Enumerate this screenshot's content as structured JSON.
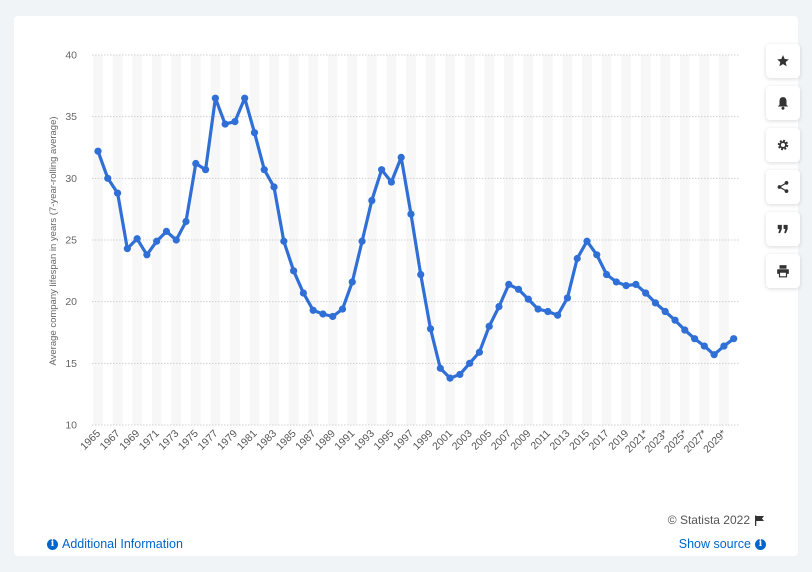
{
  "chart_data": {
    "type": "line",
    "ylabel": "Average company lifespan in years (7-year-rolling average)",
    "ylim": [
      10,
      40
    ],
    "yticks": [
      10,
      15,
      20,
      25,
      30,
      35,
      40
    ],
    "grid": true,
    "alternating_column_bands": true,
    "x": [
      "1965",
      "1966",
      "1967",
      "1968",
      "1969",
      "1970",
      "1971",
      "1972",
      "1973",
      "1974",
      "1975",
      "1976",
      "1977",
      "1978",
      "1979",
      "1980",
      "1981",
      "1982",
      "1983",
      "1984",
      "1985",
      "1986",
      "1987",
      "1988",
      "1989",
      "1990",
      "1991",
      "1992",
      "1993",
      "1994",
      "1995",
      "1996",
      "1997",
      "1998",
      "1999",
      "2000",
      "2001",
      "2002",
      "2003",
      "2004",
      "2005",
      "2006",
      "2007",
      "2008",
      "2009",
      "2010",
      "2011",
      "2012",
      "2013",
      "2014",
      "2015",
      "2016",
      "2017",
      "2018",
      "2019",
      "2020",
      "2021*",
      "2022*",
      "2023*",
      "2024*",
      "2025*",
      "2026*",
      "2027*",
      "2028*",
      "2029*",
      "2030*"
    ],
    "xtick_labels_shown": [
      "1965",
      "1967",
      "1969",
      "1971",
      "1973",
      "1975",
      "1977",
      "1979",
      "1981",
      "1983",
      "1985",
      "1987",
      "1989",
      "1991",
      "1993",
      "1995",
      "1997",
      "1999",
      "2001",
      "2003",
      "2005",
      "2007",
      "2009",
      "2011",
      "2013",
      "2015",
      "2017",
      "2019",
      "2021*",
      "2023*",
      "2025*",
      "2027*",
      "2029*"
    ],
    "series": [
      {
        "color": "#2f6fd6",
        "values": [
          32.2,
          30.0,
          28.8,
          24.3,
          25.1,
          23.8,
          24.9,
          25.7,
          25.0,
          26.5,
          31.2,
          30.7,
          36.5,
          34.4,
          34.6,
          36.5,
          33.7,
          30.7,
          29.3,
          24.9,
          22.5,
          20.7,
          19.3,
          19.0,
          18.8,
          19.4,
          21.6,
          24.9,
          28.2,
          30.7,
          29.7,
          31.7,
          27.1,
          22.2,
          17.8,
          14.6,
          13.8,
          14.1,
          15.0,
          15.9,
          18.0,
          19.6,
          21.4,
          21.0,
          20.2,
          19.4,
          19.2,
          18.9,
          20.3,
          23.5,
          24.9,
          23.8,
          22.2,
          21.6,
          21.3,
          21.4,
          20.7,
          19.9,
          19.2,
          18.5,
          17.7,
          17.0,
          16.4,
          15.7,
          16.4,
          17.0
        ]
      }
    ]
  },
  "footer": {
    "copyright": "© Statista 2022",
    "additional_info": "Additional Information",
    "show_source": "Show source"
  },
  "sidebar": {
    "icons": [
      "star-icon",
      "bell-icon",
      "gear-icon",
      "share-icon",
      "quote-icon",
      "print-icon"
    ]
  },
  "colors": {
    "line": "#2f6fd6",
    "link": "#0066cc",
    "band": "#f7f7f7",
    "grid": "#d0d0d0"
  }
}
